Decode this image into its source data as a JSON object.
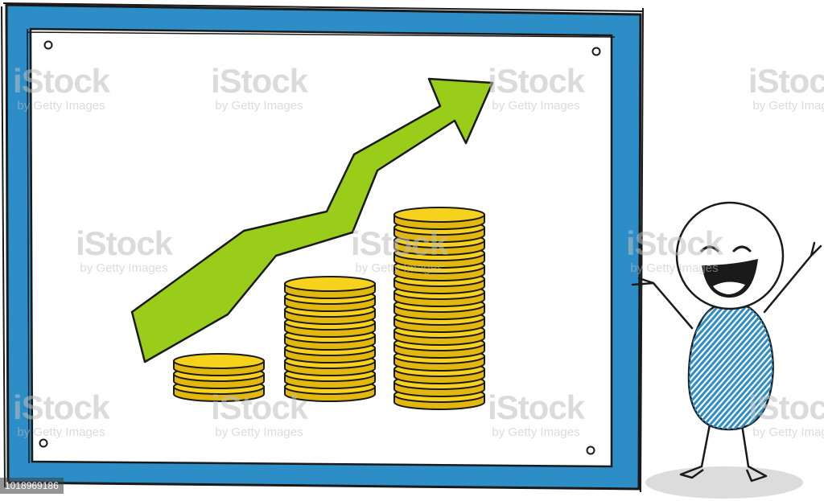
{
  "colors": {
    "frame_blue": "#2d8ec7",
    "frame_outline": "#1a1a1a",
    "board": "#ffffff",
    "arrow_green": "#9acd1a",
    "coin_gold": "#f7d21d",
    "coin_shadow": "#e2b80d",
    "shading_blue": "#2d8ec7",
    "ground_shadow": "#dcdcdc"
  },
  "icons": {
    "arrow": "growth-arrow-icon",
    "coins": "coin-stack-icon",
    "character": "stick-figure-icon"
  },
  "coin_stacks": [
    {
      "coins": 3
    },
    {
      "coins": 9
    },
    {
      "coins": 15
    }
  ],
  "watermark": {
    "brand": "iStock",
    "sub": "by Getty Images"
  },
  "image_id": "1018969186"
}
